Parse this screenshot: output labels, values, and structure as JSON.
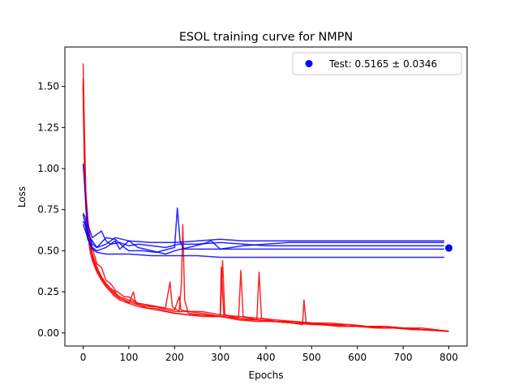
{
  "chart_data": {
    "type": "line",
    "title": "ESOL training curve for NMPN",
    "xlabel": "Epochs",
    "ylabel": "Loss",
    "xlim": [
      -40,
      840
    ],
    "ylim": [
      -0.08,
      1.74
    ],
    "xticks": [
      0,
      100,
      200,
      300,
      400,
      500,
      600,
      700,
      800
    ],
    "xtick_labels": [
      "0",
      "100",
      "200",
      "300",
      "400",
      "500",
      "600",
      "700",
      "800"
    ],
    "yticks": [
      0.0,
      0.25,
      0.5,
      0.75,
      1.0,
      1.25,
      1.5
    ],
    "ytick_labels": [
      "0.00",
      "0.25",
      "0.50",
      "0.75",
      "1.00",
      "1.25",
      "1.50"
    ],
    "grid": false,
    "legend": {
      "placement": "top-right",
      "entries": [
        {
          "label": "Test: 0.5165 ± 0.0346",
          "marker": "circle",
          "color": "#0000ff"
        }
      ]
    },
    "test_point": {
      "x": 800,
      "y": 0.5165
    },
    "series": [
      {
        "group": "validation",
        "color": "#0000ff",
        "points": [
          [
            0,
            1.03
          ],
          [
            5,
            0.82
          ],
          [
            10,
            0.66
          ],
          [
            20,
            0.58
          ],
          [
            30,
            0.6
          ],
          [
            40,
            0.62
          ],
          [
            50,
            0.56
          ],
          [
            60,
            0.54
          ],
          [
            80,
            0.55
          ],
          [
            100,
            0.53
          ],
          [
            120,
            0.54
          ],
          [
            150,
            0.53
          ],
          [
            180,
            0.52
          ],
          [
            210,
            0.54
          ],
          [
            250,
            0.54
          ],
          [
            300,
            0.55
          ],
          [
            350,
            0.54
          ],
          [
            400,
            0.53
          ],
          [
            500,
            0.53
          ],
          [
            600,
            0.53
          ],
          [
            700,
            0.53
          ],
          [
            790,
            0.53
          ]
        ]
      },
      {
        "group": "validation",
        "color": "#0000ff",
        "points": [
          [
            0,
            0.73
          ],
          [
            5,
            0.7
          ],
          [
            10,
            0.6
          ],
          [
            20,
            0.56
          ],
          [
            30,
            0.52
          ],
          [
            40,
            0.55
          ],
          [
            50,
            0.58
          ],
          [
            70,
            0.57
          ],
          [
            90,
            0.52
          ],
          [
            100,
            0.5
          ],
          [
            130,
            0.5
          ],
          [
            160,
            0.49
          ],
          [
            200,
            0.52
          ],
          [
            206,
            0.76
          ],
          [
            212,
            0.56
          ],
          [
            220,
            0.51
          ],
          [
            260,
            0.51
          ],
          [
            300,
            0.51
          ],
          [
            350,
            0.51
          ],
          [
            400,
            0.51
          ],
          [
            500,
            0.51
          ],
          [
            600,
            0.51
          ],
          [
            700,
            0.51
          ],
          [
            790,
            0.51
          ]
        ]
      },
      {
        "group": "validation",
        "color": "#0000ff",
        "points": [
          [
            0,
            0.68
          ],
          [
            5,
            0.65
          ],
          [
            10,
            0.57
          ],
          [
            20,
            0.51
          ],
          [
            30,
            0.49
          ],
          [
            50,
            0.48
          ],
          [
            70,
            0.48
          ],
          [
            100,
            0.48
          ],
          [
            150,
            0.47
          ],
          [
            200,
            0.47
          ],
          [
            250,
            0.47
          ],
          [
            300,
            0.46
          ],
          [
            400,
            0.46
          ],
          [
            500,
            0.46
          ],
          [
            600,
            0.46
          ],
          [
            700,
            0.46
          ],
          [
            790,
            0.46
          ]
        ]
      },
      {
        "group": "validation",
        "color": "#0000ff",
        "points": [
          [
            0,
            0.66
          ],
          [
            5,
            0.62
          ],
          [
            10,
            0.58
          ],
          [
            20,
            0.52
          ],
          [
            30,
            0.5
          ],
          [
            50,
            0.52
          ],
          [
            70,
            0.56
          ],
          [
            80,
            0.51
          ],
          [
            100,
            0.56
          ],
          [
            120,
            0.52
          ],
          [
            150,
            0.5
          ],
          [
            180,
            0.48
          ],
          [
            200,
            0.5
          ],
          [
            230,
            0.52
          ],
          [
            260,
            0.54
          ],
          [
            280,
            0.56
          ],
          [
            300,
            0.51
          ],
          [
            350,
            0.53
          ],
          [
            400,
            0.54
          ],
          [
            450,
            0.55
          ],
          [
            500,
            0.55
          ],
          [
            600,
            0.55
          ],
          [
            700,
            0.55
          ],
          [
            790,
            0.55
          ]
        ]
      },
      {
        "group": "validation",
        "color": "#0000ff",
        "points": [
          [
            0,
            0.72
          ],
          [
            5,
            0.66
          ],
          [
            10,
            0.62
          ],
          [
            20,
            0.54
          ],
          [
            30,
            0.52
          ],
          [
            50,
            0.54
          ],
          [
            70,
            0.58
          ],
          [
            100,
            0.56
          ],
          [
            150,
            0.55
          ],
          [
            200,
            0.55
          ],
          [
            250,
            0.56
          ],
          [
            300,
            0.57
          ],
          [
            350,
            0.56
          ],
          [
            400,
            0.56
          ],
          [
            500,
            0.56
          ],
          [
            600,
            0.56
          ],
          [
            700,
            0.56
          ],
          [
            790,
            0.56
          ]
        ]
      },
      {
        "group": "training",
        "color": "#ff0000",
        "points": [
          [
            0,
            1.64
          ],
          [
            3,
            1.2
          ],
          [
            6,
            0.85
          ],
          [
            10,
            0.7
          ],
          [
            15,
            0.58
          ],
          [
            20,
            0.52
          ],
          [
            30,
            0.42
          ],
          [
            40,
            0.4
          ],
          [
            50,
            0.32
          ],
          [
            60,
            0.3
          ],
          [
            70,
            0.26
          ],
          [
            80,
            0.24
          ],
          [
            90,
            0.22
          ],
          [
            100,
            0.22
          ],
          [
            110,
            0.2
          ],
          [
            120,
            0.18
          ],
          [
            140,
            0.17
          ],
          [
            160,
            0.16
          ],
          [
            180,
            0.15
          ],
          [
            190,
            0.31
          ],
          [
            195,
            0.16
          ],
          [
            210,
            0.13
          ],
          [
            215,
            0.3
          ],
          [
            218,
            0.66
          ],
          [
            222,
            0.2
          ],
          [
            230,
            0.12
          ],
          [
            260,
            0.11
          ],
          [
            300,
            0.1
          ],
          [
            305,
            0.44
          ],
          [
            310,
            0.11
          ],
          [
            340,
            0.09
          ],
          [
            345,
            0.38
          ],
          [
            350,
            0.1
          ],
          [
            380,
            0.08
          ],
          [
            385,
            0.37
          ],
          [
            390,
            0.09
          ],
          [
            420,
            0.07
          ],
          [
            460,
            0.06
          ],
          [
            480,
            0.05
          ],
          [
            483,
            0.2
          ],
          [
            488,
            0.06
          ],
          [
            520,
            0.05
          ],
          [
            560,
            0.04
          ],
          [
            600,
            0.04
          ],
          [
            640,
            0.03
          ],
          [
            680,
            0.03
          ],
          [
            720,
            0.02
          ],
          [
            760,
            0.02
          ],
          [
            800,
            0.01
          ]
        ]
      },
      {
        "group": "training",
        "color": "#ff0000",
        "points": [
          [
            0,
            1.55
          ],
          [
            3,
            1.1
          ],
          [
            6,
            0.8
          ],
          [
            10,
            0.65
          ],
          [
            15,
            0.55
          ],
          [
            20,
            0.48
          ],
          [
            30,
            0.4
          ],
          [
            40,
            0.34
          ],
          [
            50,
            0.3
          ],
          [
            60,
            0.27
          ],
          [
            70,
            0.25
          ],
          [
            80,
            0.21
          ],
          [
            90,
            0.2
          ],
          [
            100,
            0.19
          ],
          [
            120,
            0.17
          ],
          [
            140,
            0.16
          ],
          [
            160,
            0.16
          ],
          [
            180,
            0.14
          ],
          [
            200,
            0.13
          ],
          [
            230,
            0.13
          ],
          [
            260,
            0.12
          ],
          [
            300,
            0.1
          ],
          [
            302,
            0.4
          ],
          [
            308,
            0.1
          ],
          [
            340,
            0.08
          ],
          [
            380,
            0.07
          ],
          [
            420,
            0.07
          ],
          [
            460,
            0.06
          ],
          [
            500,
            0.05
          ],
          [
            540,
            0.05
          ],
          [
            580,
            0.05
          ],
          [
            620,
            0.04
          ],
          [
            660,
            0.03
          ],
          [
            700,
            0.03
          ],
          [
            740,
            0.02
          ],
          [
            800,
            0.01
          ]
        ]
      },
      {
        "group": "training",
        "color": "#ff0000",
        "points": [
          [
            0,
            1.5
          ],
          [
            3,
            1.05
          ],
          [
            6,
            0.78
          ],
          [
            10,
            0.62
          ],
          [
            15,
            0.52
          ],
          [
            20,
            0.46
          ],
          [
            30,
            0.38
          ],
          [
            40,
            0.33
          ],
          [
            50,
            0.29
          ],
          [
            60,
            0.26
          ],
          [
            70,
            0.23
          ],
          [
            80,
            0.21
          ],
          [
            90,
            0.2
          ],
          [
            100,
            0.18
          ],
          [
            110,
            0.25
          ],
          [
            115,
            0.18
          ],
          [
            140,
            0.15
          ],
          [
            160,
            0.15
          ],
          [
            180,
            0.13
          ],
          [
            200,
            0.12
          ],
          [
            230,
            0.11
          ],
          [
            260,
            0.1
          ],
          [
            300,
            0.1
          ],
          [
            340,
            0.08
          ],
          [
            380,
            0.08
          ],
          [
            420,
            0.07
          ],
          [
            460,
            0.07
          ],
          [
            500,
            0.06
          ],
          [
            540,
            0.05
          ],
          [
            580,
            0.05
          ],
          [
            620,
            0.04
          ],
          [
            660,
            0.04
          ],
          [
            700,
            0.03
          ],
          [
            740,
            0.02
          ],
          [
            800,
            0.01
          ]
        ]
      },
      {
        "group": "training",
        "color": "#ff0000",
        "points": [
          [
            0,
            1.52
          ],
          [
            3,
            1.08
          ],
          [
            6,
            0.82
          ],
          [
            10,
            0.66
          ],
          [
            15,
            0.55
          ],
          [
            20,
            0.47
          ],
          [
            30,
            0.39
          ],
          [
            40,
            0.34
          ],
          [
            50,
            0.3
          ],
          [
            60,
            0.27
          ],
          [
            70,
            0.24
          ],
          [
            80,
            0.22
          ],
          [
            90,
            0.21
          ],
          [
            100,
            0.2
          ],
          [
            120,
            0.18
          ],
          [
            140,
            0.17
          ],
          [
            160,
            0.16
          ],
          [
            180,
            0.15
          ],
          [
            200,
            0.14
          ],
          [
            210,
            0.22
          ],
          [
            214,
            0.14
          ],
          [
            230,
            0.13
          ],
          [
            260,
            0.13
          ],
          [
            300,
            0.11
          ],
          [
            340,
            0.1
          ],
          [
            380,
            0.09
          ],
          [
            420,
            0.08
          ],
          [
            460,
            0.07
          ],
          [
            500,
            0.06
          ],
          [
            540,
            0.06
          ],
          [
            580,
            0.05
          ],
          [
            620,
            0.04
          ],
          [
            660,
            0.04
          ],
          [
            700,
            0.03
          ],
          [
            740,
            0.03
          ],
          [
            800,
            0.01
          ]
        ]
      },
      {
        "group": "training",
        "color": "#ff0000",
        "points": [
          [
            0,
            1.48
          ],
          [
            3,
            1.0
          ],
          [
            6,
            0.75
          ],
          [
            10,
            0.6
          ],
          [
            15,
            0.5
          ],
          [
            20,
            0.44
          ],
          [
            30,
            0.37
          ],
          [
            40,
            0.32
          ],
          [
            50,
            0.28
          ],
          [
            60,
            0.25
          ],
          [
            70,
            0.22
          ],
          [
            80,
            0.2
          ],
          [
            90,
            0.19
          ],
          [
            100,
            0.18
          ],
          [
            120,
            0.16
          ],
          [
            140,
            0.15
          ],
          [
            160,
            0.14
          ],
          [
            180,
            0.13
          ],
          [
            200,
            0.12
          ],
          [
            230,
            0.11
          ],
          [
            260,
            0.11
          ],
          [
            280,
            0.1
          ],
          [
            300,
            0.1
          ],
          [
            340,
            0.09
          ],
          [
            380,
            0.08
          ],
          [
            420,
            0.07
          ],
          [
            460,
            0.06
          ],
          [
            500,
            0.06
          ],
          [
            540,
            0.05
          ],
          [
            580,
            0.04
          ],
          [
            620,
            0.04
          ],
          [
            660,
            0.03
          ],
          [
            700,
            0.03
          ],
          [
            740,
            0.02
          ],
          [
            800,
            0.01
          ]
        ]
      }
    ]
  }
}
